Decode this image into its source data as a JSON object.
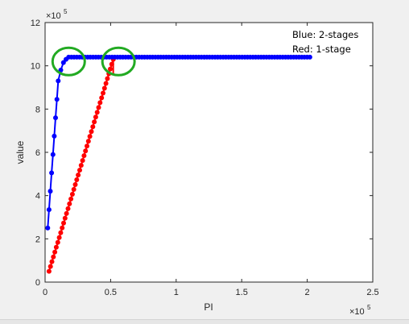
{
  "chart_data": {
    "type": "line",
    "xlabel": "PI",
    "ylabel": "value",
    "x_exponent_label": "×10",
    "x_exponent_power": "5",
    "y_exponent_label": "×10",
    "y_exponent_power": "5",
    "xlim": [
      0,
      2.5
    ],
    "ylim": [
      0,
      12
    ],
    "xticks": [
      0,
      0.5,
      1,
      1.5,
      2,
      2.5
    ],
    "xtick_labels": [
      "0",
      "0.5",
      "1",
      "1.5",
      "2",
      "2.5"
    ],
    "yticks": [
      0,
      2,
      4,
      6,
      8,
      10,
      12
    ],
    "ytick_labels": [
      "0",
      "2",
      "4",
      "6",
      "8",
      "10",
      "12"
    ],
    "grid": false,
    "annotations": [
      {
        "text": "Blue: 2-stages"
      },
      {
        "text": "Red: 1-stage"
      }
    ],
    "highlight_circles": [
      {
        "cx": 0.18,
        "cy": 10.2,
        "color": "#22aa22"
      },
      {
        "cx": 0.56,
        "cy": 10.2,
        "color": "#22aa22"
      }
    ],
    "series": [
      {
        "color": "#0000ff",
        "marker": "dot",
        "points": [
          [
            0.02,
            2.5
          ],
          [
            0.03,
            3.35
          ],
          [
            0.04,
            4.2
          ],
          [
            0.05,
            5.05
          ],
          [
            0.06,
            5.9
          ],
          [
            0.07,
            6.75
          ],
          [
            0.08,
            7.6
          ],
          [
            0.09,
            8.45
          ],
          [
            0.1,
            9.3
          ],
          [
            0.12,
            9.8
          ],
          [
            0.14,
            10.15
          ],
          [
            0.16,
            10.3
          ],
          [
            0.18,
            10.4
          ]
        ],
        "plateau": {
          "x_start": 0.18,
          "x_end": 2.02,
          "y": 10.4,
          "n_points": 90
        }
      },
      {
        "color": "#ff0000",
        "marker": "dot",
        "line": {
          "x_start": 0.03,
          "y_start": 0.5,
          "x_end": 0.52,
          "y_end": 10.3,
          "n_points": 45
        },
        "end_vertical": {
          "x": 0.52,
          "y_start": 9.6,
          "y_end": 10.3
        }
      }
    ]
  }
}
